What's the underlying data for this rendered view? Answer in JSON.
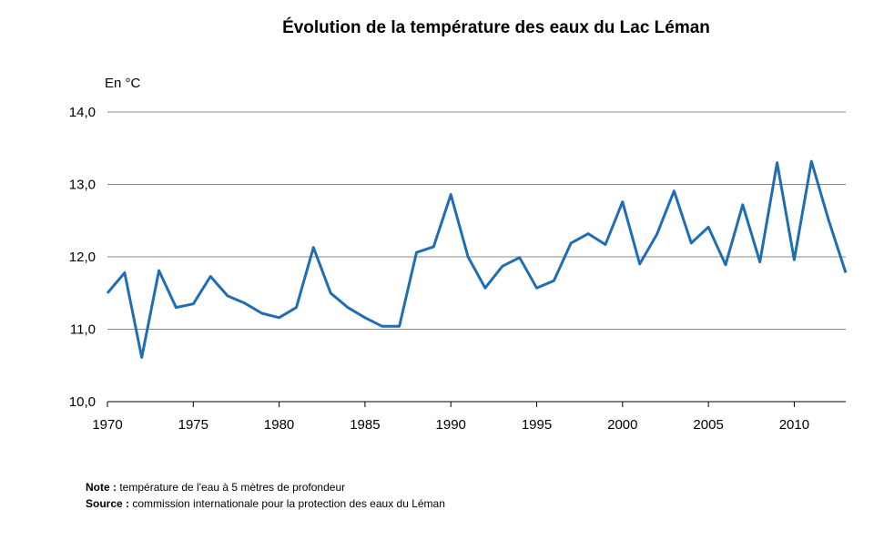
{
  "chart_data": {
    "type": "line",
    "title": "Évolution de la température des eaux du Lac Léman",
    "unit_label": "En °C",
    "xlabel": "",
    "ylabel": "",
    "xlim": [
      1970,
      2013
    ],
    "ylim": [
      10.0,
      14.0
    ],
    "x_ticks": [
      1970,
      1975,
      1980,
      1985,
      1990,
      1995,
      2000,
      2005,
      2010
    ],
    "y_ticks": [
      "10,0",
      "11,0",
      "12,0",
      "13,0",
      "14,0"
    ],
    "grid": true,
    "legend": "none",
    "series": [
      {
        "color": "#1f6db5",
        "x": [
          1970,
          1971,
          1972,
          1973,
          1974,
          1975,
          1976,
          1977,
          1978,
          1979,
          1980,
          1981,
          1982,
          1983,
          1984,
          1985,
          1986,
          1987,
          1988,
          1989,
          1990,
          1991,
          1992,
          1993,
          1994,
          1995,
          1996,
          1997,
          1998,
          1999,
          2000,
          2001,
          2002,
          2003,
          2004,
          2005,
          2006,
          2007,
          2008,
          2009,
          2010,
          2011,
          2012,
          2013
        ],
        "values": [
          11.5,
          11.78,
          10.61,
          11.81,
          11.3,
          11.35,
          11.73,
          11.46,
          11.36,
          11.22,
          11.16,
          11.3,
          12.13,
          11.5,
          11.3,
          11.16,
          11.04,
          11.04,
          12.06,
          12.14,
          12.86,
          12.0,
          11.57,
          11.87,
          11.99,
          11.57,
          11.67,
          12.19,
          12.32,
          12.17,
          12.76,
          11.9,
          12.31,
          12.91,
          12.19,
          12.41,
          11.89,
          12.72,
          11.93,
          13.3,
          11.96,
          13.32,
          12.51,
          11.78
        ]
      }
    ]
  },
  "notes": {
    "note_label": "Note :",
    "note_text": "température de l'eau à 5 mètres de profondeur",
    "source_label": "Source :",
    "source_text": "commission internationale pour la protection des eaux du Léman"
  }
}
